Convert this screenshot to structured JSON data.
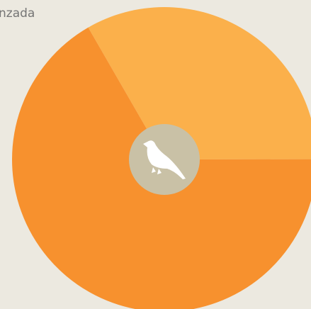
{
  "chart_data": {
    "type": "pie",
    "categories": [
      null,
      null
    ],
    "values": [
      33.3,
      66.7
    ],
    "colors": [
      "#fbb04b",
      "#f7912e"
    ],
    "annotations": [
      "nzada"
    ]
  }
}
